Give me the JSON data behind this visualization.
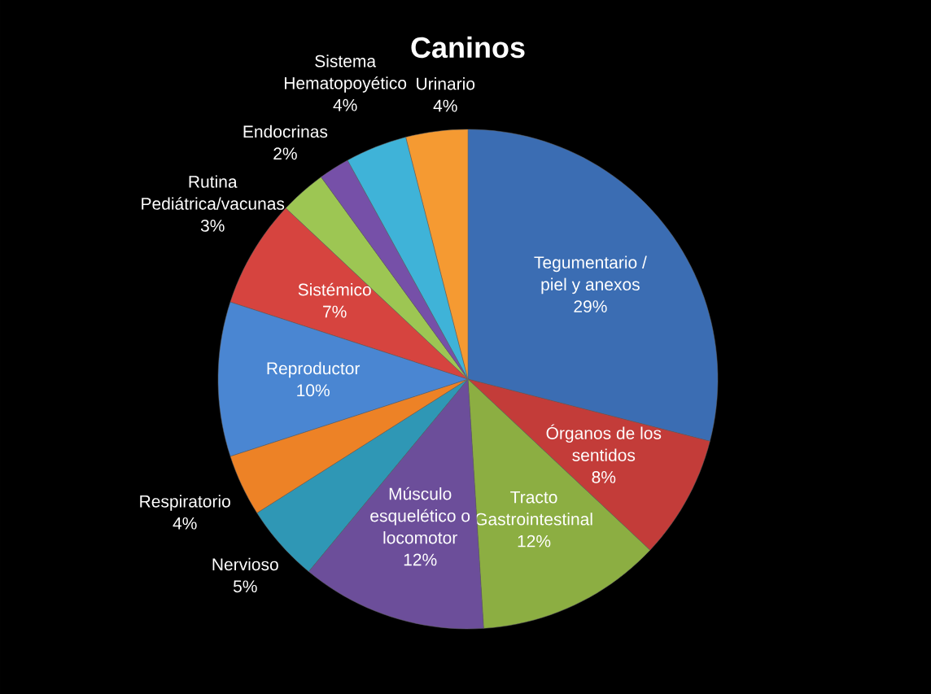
{
  "chart_data": {
    "type": "pie",
    "title": "Caninos",
    "categories": [
      "Tegumentario / piel y anexos",
      "Órganos de los sentidos",
      "Tracto Gastrointestinal",
      "Músculo esquelético o locomotor",
      "Nervioso",
      "Respiratorio",
      "Reproductor",
      "Sistémico",
      "Rutina Pediátrica/vacunas",
      "Endocrinas",
      "Sistema Hematopoyético",
      "Urinario"
    ],
    "values": [
      29,
      8,
      12,
      12,
      5,
      4,
      10,
      7,
      3,
      2,
      4,
      4
    ],
    "value_labels": [
      "29%",
      "8%",
      "12%",
      "12%",
      "5%",
      "4%",
      "10%",
      "7%",
      "3%",
      "2%",
      "4%",
      "4%"
    ],
    "colors": [
      "#3b6db3",
      "#c33c39",
      "#8cae42",
      "#6c4e9a",
      "#2f97b5",
      "#ed8226",
      "#4a86d2",
      "#d6443f",
      "#9dc653",
      "#7650a8",
      "#3fb3d8",
      "#f59a32"
    ]
  }
}
